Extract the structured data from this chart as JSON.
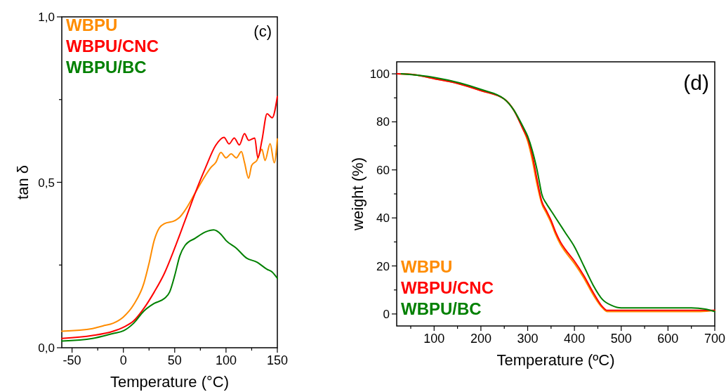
{
  "chart_data": [
    {
      "type": "line",
      "title": "(c)",
      "xlabel": "Temperature (°C)",
      "ylabel": "tan δ",
      "legend": "top left",
      "grid": false,
      "xlim": [
        -60,
        150
      ],
      "xticks": [
        -50,
        {
          "value": -25,
          "label": null
        },
        0,
        {
          "value": 25,
          "label": null
        },
        50,
        {
          "value": 75,
          "label": null
        },
        100,
        {
          "value": 125,
          "label": null
        },
        150
      ],
      "ylim": [
        0,
        1
      ],
      "yticks": [
        {
          "value": 0,
          "label": "0,0"
        },
        {
          "value": 0.25,
          "label": null
        },
        {
          "value": 0.5,
          "label": "0,5"
        },
        {
          "value": 0.75,
          "label": null
        },
        {
          "value": 1,
          "label": "1,0"
        }
      ],
      "series": [
        {
          "name": "WBPU",
          "color": "#ff8c00",
          "x": [
            -60,
            -30,
            -20,
            -10,
            0,
            10,
            20,
            25,
            30,
            35,
            40,
            50,
            55,
            60,
            70,
            80,
            85,
            90,
            95,
            100,
            105,
            110,
            115,
            118,
            122,
            125,
            130,
            135,
            138,
            143,
            147,
            150
          ],
          "values": [
            0.05,
            0.058,
            0.066,
            0.074,
            0.093,
            0.13,
            0.195,
            0.255,
            0.324,
            0.362,
            0.375,
            0.384,
            0.395,
            0.415,
            0.468,
            0.521,
            0.544,
            0.56,
            0.59,
            0.574,
            0.586,
            0.574,
            0.593,
            0.56,
            0.512,
            0.551,
            0.566,
            0.6,
            0.566,
            0.617,
            0.559,
            0.631
          ]
        },
        {
          "name": "WBPU/CNC",
          "color": "#ff0000",
          "x": [
            -60,
            -30,
            -10,
            0,
            10,
            20,
            30,
            40,
            50,
            60,
            70,
            80,
            90,
            98,
            103,
            108,
            113,
            118,
            122,
            128,
            131,
            135,
            140,
            145,
            150
          ],
          "values": [
            0.028,
            0.037,
            0.05,
            0.062,
            0.081,
            0.119,
            0.168,
            0.225,
            0.301,
            0.384,
            0.468,
            0.544,
            0.612,
            0.636,
            0.616,
            0.634,
            0.613,
            0.647,
            0.627,
            0.634,
            0.574,
            0.627,
            0.707,
            0.695,
            0.759
          ]
        },
        {
          "name": "WBPU/BC",
          "color": "#008000",
          "x": [
            -60,
            -30,
            -10,
            0,
            10,
            20,
            30,
            40,
            45,
            50,
            55,
            60,
            70,
            80,
            88,
            95,
            100,
            110,
            120,
            130,
            140,
            145,
            150
          ],
          "values": [
            0.02,
            0.028,
            0.043,
            0.051,
            0.074,
            0.111,
            0.134,
            0.149,
            0.168,
            0.218,
            0.278,
            0.309,
            0.331,
            0.35,
            0.356,
            0.343,
            0.324,
            0.301,
            0.271,
            0.259,
            0.237,
            0.229,
            0.21
          ]
        }
      ]
    },
    {
      "type": "line",
      "title": "(d)",
      "xlabel": "Temperature (ºC)",
      "ylabel": "weight (%)",
      "legend": "bottom left",
      "grid": false,
      "xlim": [
        20,
        700
      ],
      "xticks": [
        {
          "value": 50,
          "label": null
        },
        100,
        {
          "value": 150,
          "label": null
        },
        200,
        {
          "value": 250,
          "label": null
        },
        300,
        {
          "value": 350,
          "label": null
        },
        400,
        {
          "value": 450,
          "label": null
        },
        500,
        {
          "value": 550,
          "label": null
        },
        600,
        {
          "value": 650,
          "label": null
        },
        700
      ],
      "ylim": [
        -5,
        105
      ],
      "yticks": [
        0,
        {
          "value": 10,
          "label": null
        },
        20,
        {
          "value": 30,
          "label": null
        },
        40,
        {
          "value": 50,
          "label": null
        },
        60,
        {
          "value": 70,
          "label": null
        },
        80,
        {
          "value": 90,
          "label": null
        },
        100
      ],
      "series": [
        {
          "name": "WBPU",
          "color": "#ff8c00",
          "x": [
            20,
            50,
            100,
            150,
            200,
            250,
            270,
            290,
            300,
            310,
            320,
            330,
            340,
            350,
            360,
            370,
            380,
            400,
            420,
            440,
            460,
            470,
            500,
            600,
            670,
            700
          ],
          "values": [
            100,
            99.8,
            98,
            96,
            93,
            89.5,
            85,
            77,
            72,
            64,
            54,
            46,
            42,
            38,
            33,
            29,
            26,
            21,
            15,
            8,
            2.5,
            1,
            1,
            1,
            1,
            1.5
          ]
        },
        {
          "name": "WBPU/CNC",
          "color": "#ff0000",
          "x": [
            20,
            50,
            100,
            150,
            200,
            250,
            270,
            290,
            300,
            310,
            320,
            330,
            340,
            350,
            360,
            370,
            380,
            400,
            420,
            440,
            460,
            470,
            500,
            650,
            700
          ],
          "values": [
            100,
            99.8,
            98,
            96,
            93,
            89.5,
            85,
            77,
            73,
            66,
            56,
            47,
            43,
            39,
            34,
            30,
            27,
            22,
            16,
            9,
            3,
            1.5,
            1.5,
            1.5,
            1.5
          ]
        },
        {
          "name": "WBPU/BC",
          "color": "#008000",
          "x": [
            30,
            100,
            200,
            250,
            270,
            290,
            300,
            310,
            320,
            325,
            330,
            340,
            350,
            360,
            380,
            400,
            420,
            440,
            460,
            480,
            500,
            600,
            650,
            680,
            700
          ],
          "values": [
            100,
            98.5,
            93.5,
            89.5,
            85,
            78,
            74,
            68,
            60,
            55,
            50,
            46,
            43,
            40,
            34,
            28,
            20,
            12,
            6,
            3.5,
            2.5,
            2.5,
            2.5,
            2,
            1
          ]
        }
      ]
    }
  ]
}
